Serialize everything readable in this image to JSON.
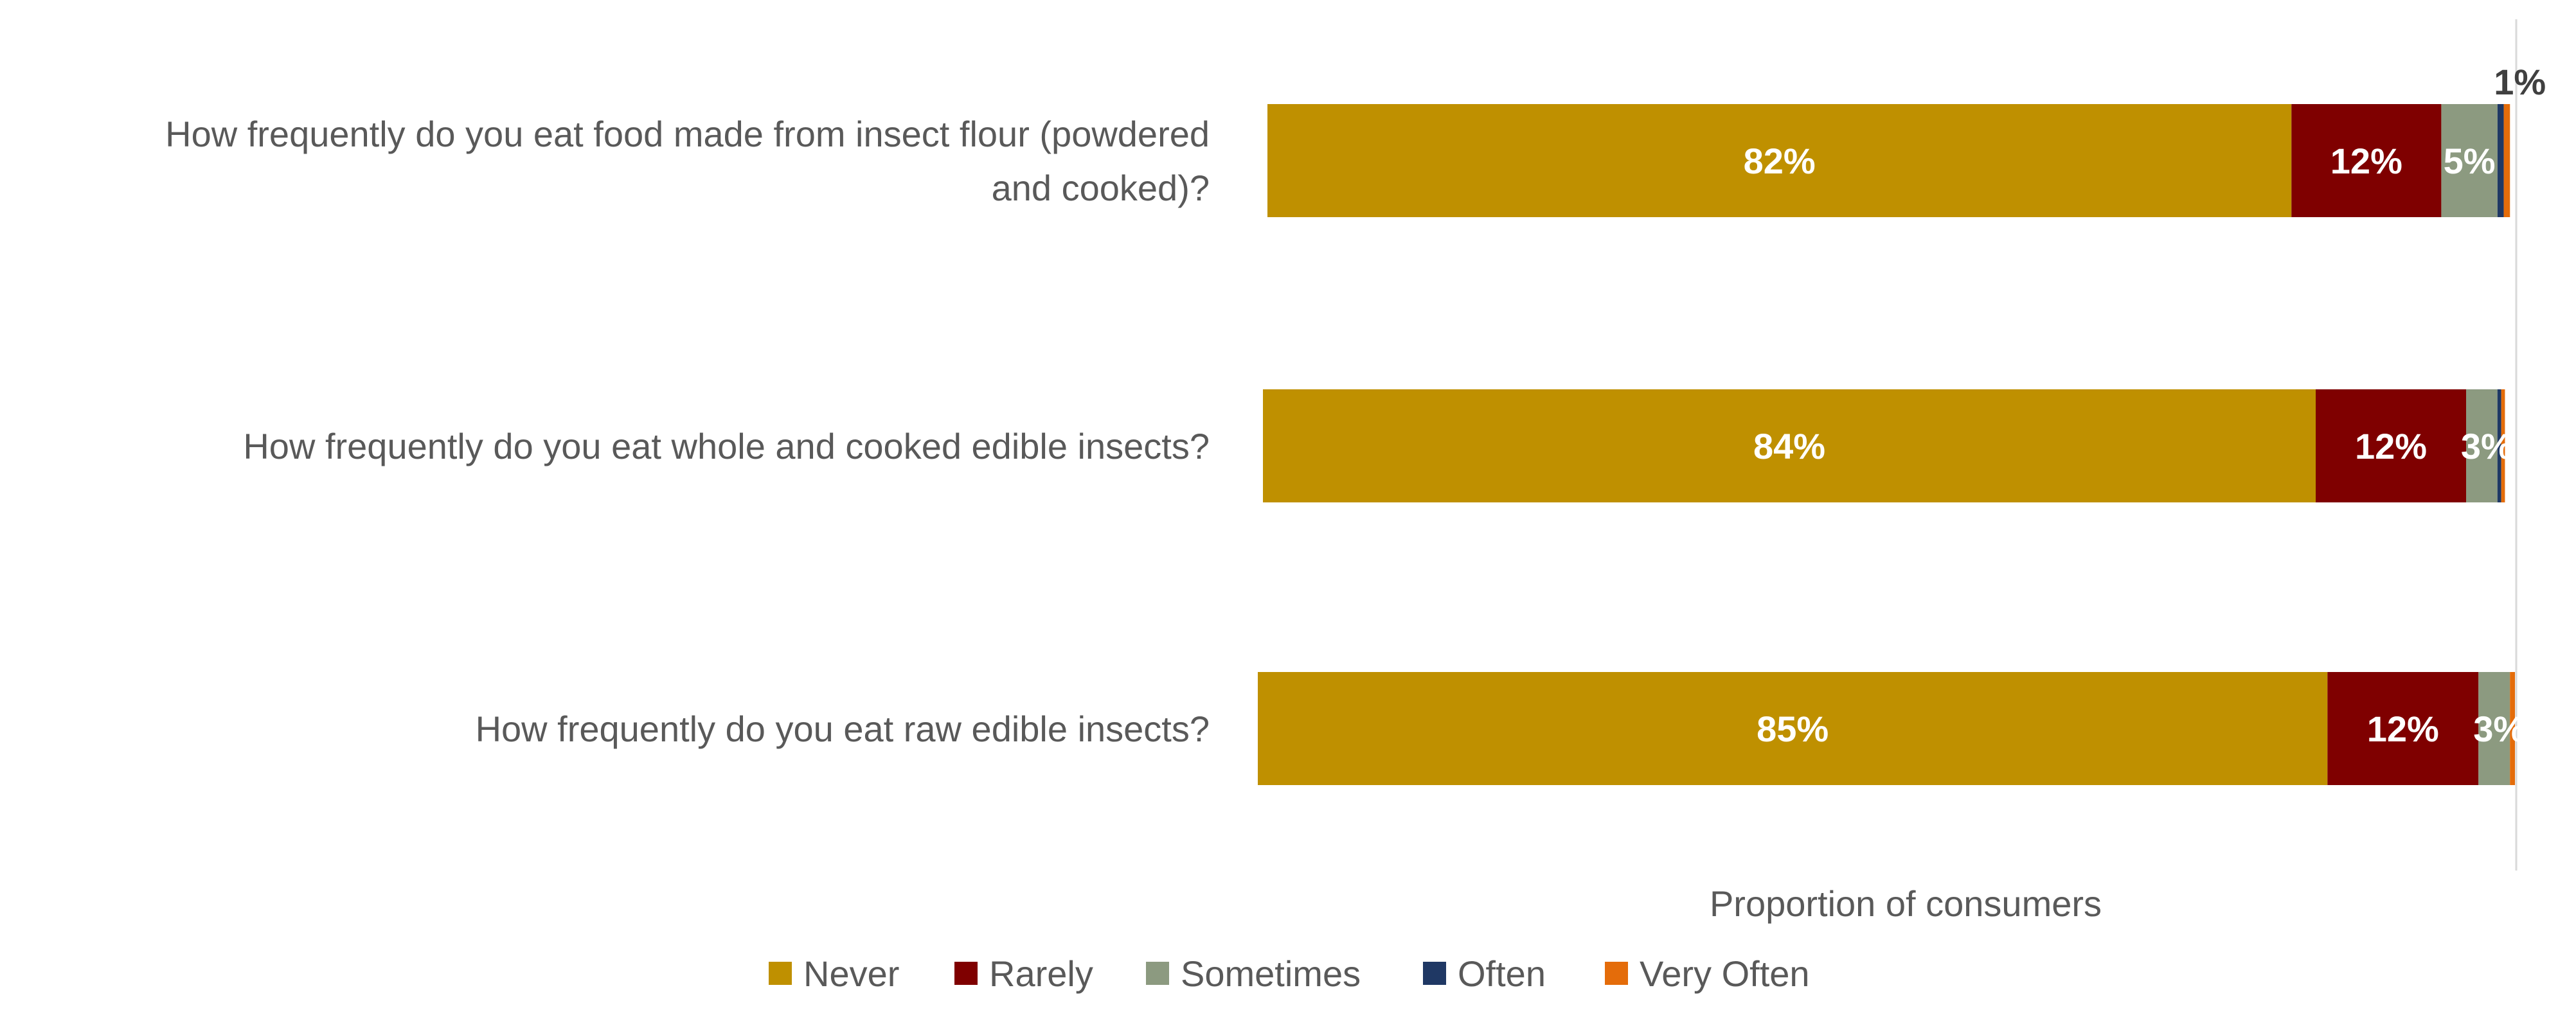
{
  "chart_data": {
    "type": "bar",
    "orientation": "horizontal",
    "stacked": true,
    "categories": [
      "How frequently do you eat food made from insect flour (powdered and cooked)?",
      "How frequently do you eat whole and cooked edible insects?",
      "How frequently do you eat raw edible insects?"
    ],
    "category_lines": [
      [
        "How frequently do you eat food made from insect flour (powdered",
        "and cooked)?"
      ],
      [
        "How frequently do you eat whole and cooked edible insects?"
      ],
      [
        "How frequently do you eat raw edible insects?"
      ]
    ],
    "series": [
      {
        "name": "Never",
        "color": "#BF9000",
        "values": [
          82,
          84,
          85
        ],
        "labels": [
          "82%",
          "84%",
          "85%"
        ]
      },
      {
        "name": "Rarely",
        "color": "#7F0000",
        "values": [
          12,
          12,
          12
        ],
        "labels": [
          "12%",
          "12%",
          "12%"
        ]
      },
      {
        "name": "Sometimes",
        "color": "#8C9A80",
        "values": [
          4.5,
          2.5,
          2.5
        ],
        "labels": [
          "5%",
          "3%",
          "3%"
        ]
      },
      {
        "name": "Often",
        "color": "#1F3864",
        "values": [
          0.5,
          0.3,
          0
        ],
        "labels": [
          "1%",
          "",
          ""
        ]
      },
      {
        "name": "Very Often",
        "color": "#E46C0A",
        "values": [
          0.5,
          0.3,
          0.4
        ],
        "labels": [
          "",
          "",
          ""
        ]
      }
    ],
    "xlabel": "Proportion of consumers",
    "ylabel": "",
    "xlim": [
      0,
      100
    ],
    "grid": false,
    "legend_position": "bottom"
  }
}
